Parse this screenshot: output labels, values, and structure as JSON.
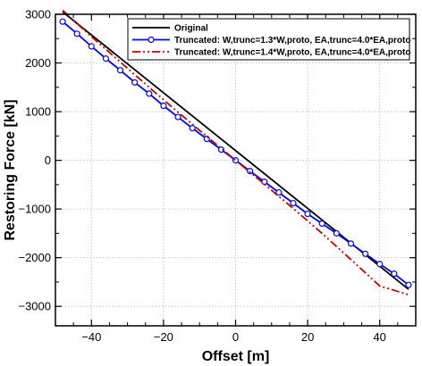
{
  "chart_data": {
    "type": "line",
    "title": "",
    "xlabel": "Offset [m]",
    "ylabel": "Restoring Force [kN]",
    "xlim": [
      -50,
      50
    ],
    "ylim": [
      -3400,
      3000
    ],
    "xticks": [
      -40,
      -20,
      0,
      20,
      40
    ],
    "yticks": [
      3000,
      2000,
      1000,
      0,
      -1000,
      -2000,
      -3000
    ],
    "grid": true,
    "legend_position": "top-right",
    "series": [
      {
        "name": "Original",
        "color": "#000000",
        "style": "solid",
        "marker": "none",
        "x": [
          -48,
          48
        ],
        "y": [
          3050,
          -2650
        ]
      },
      {
        "name": "Truncated: W,trunc=1.3*W,proto, EA,trunc=4.0*EA,proto",
        "color": "#0000ff",
        "style": "solid",
        "marker": "circle",
        "x": [
          -48,
          -44,
          -40,
          -36,
          -32,
          -28,
          -24,
          -20,
          -16,
          -12,
          -8,
          -4,
          0,
          4,
          8,
          12,
          16,
          20,
          24,
          28,
          32,
          36,
          40,
          44,
          48
        ],
        "y": [
          2850,
          2600,
          2340,
          2090,
          1850,
          1600,
          1370,
          1120,
          890,
          660,
          440,
          220,
          0,
          -220,
          -440,
          -660,
          -880,
          -1100,
          -1300,
          -1500,
          -1710,
          -1920,
          -2130,
          -2330,
          -2560
        ]
      },
      {
        "name": "Truncated: W,trunc=1.4*W,proto, EA,trunc=4.0*EA,proto",
        "color": "#cc0000",
        "style": "dashdotdot",
        "marker": "none",
        "x": [
          -48,
          -40,
          -32,
          -24,
          -16,
          -8,
          0,
          8,
          16,
          24,
          32,
          40,
          48
        ],
        "y": [
          3080,
          2540,
          2020,
          1500,
          990,
          490,
          0,
          -490,
          -990,
          -1500,
          -2040,
          -2580,
          -2760
        ]
      }
    ]
  }
}
